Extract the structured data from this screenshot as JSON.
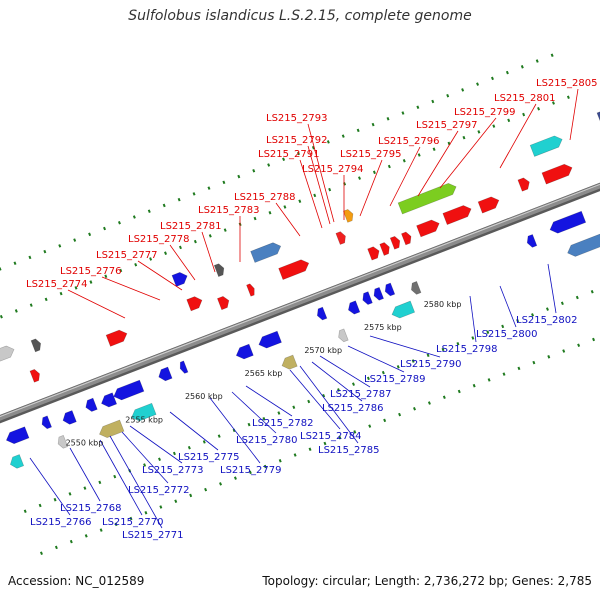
{
  "title": "Sulfolobus islandicus L.S.2.15, complete genome",
  "footer": {
    "accession": "Accession: NC_012589",
    "summary": "Topology: circular; Length: 2,736,272 bp; Genes: 2,785"
  },
  "colors": {
    "top_labels": "#e00000",
    "bottom_labels": "#1010c0",
    "backbone": "#8c8c8c",
    "tick": "#1f7a1f"
  },
  "scale_marks": [
    {
      "kbp": 2550,
      "label": "2550 kbp"
    },
    {
      "kbp": 2555,
      "label": "2555 kbp"
    },
    {
      "kbp": 2560,
      "label": "2560 kbp"
    },
    {
      "kbp": 2565,
      "label": "2565 kbp"
    },
    {
      "kbp": 2570,
      "label": "2570 kbp"
    },
    {
      "kbp": 2575,
      "label": "2575 kbp"
    },
    {
      "kbp": 2580,
      "label": "2580 kbp"
    }
  ],
  "top_labels": [
    "LS215_2774",
    "LS215_2776",
    "LS215_2777",
    "LS215_2778",
    "LS215_2781",
    "LS215_2783",
    "LS215_2788",
    "LS215_2791",
    "LS215_2792",
    "LS215_2793",
    "LS215_2794",
    "LS215_2795",
    "LS215_2796",
    "LS215_2797",
    "LS215_2799",
    "LS215_2801",
    "LS215_2805"
  ],
  "bottom_labels": [
    "LS215_2766",
    "LS215_2768",
    "LS215_2770",
    "LS215_2771",
    "LS215_2772",
    "LS215_2773",
    "LS215_2775",
    "LS215_2779",
    "LS215_2780",
    "LS215_2782",
    "LS215_2784",
    "LS215_2785",
    "LS215_2786",
    "LS215_2787",
    "LS215_2789",
    "LS215_2790",
    "LS215_2798",
    "LS215_2800",
    "LS215_2802"
  ]
}
